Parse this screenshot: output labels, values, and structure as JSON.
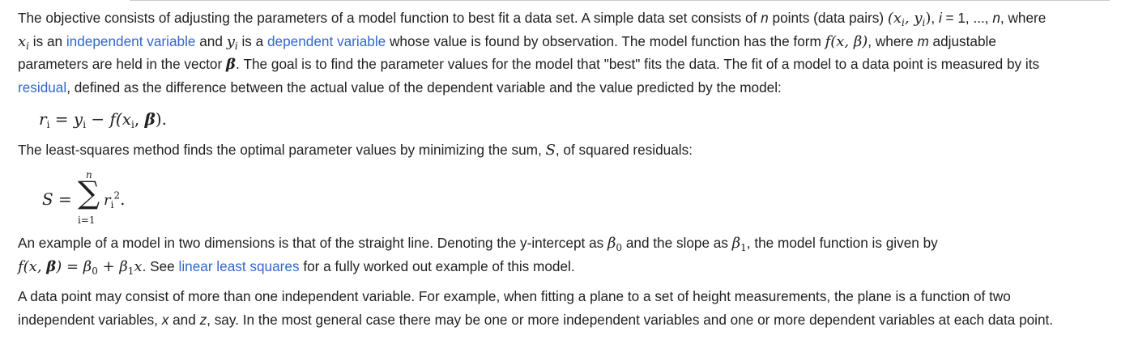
{
  "p1": {
    "l1_a": "The objective consists of adjusting the parameters of a model function to best fit a data set. A simple data set consists of ",
    "l1_n": "n",
    "l1_b": " points (data pairs) ",
    "l1_pair": "(x",
    "l1_pair_i1": "i",
    "l1_pair_mid": ", y",
    "l1_pair_i2": "i",
    "l1_pair_close": ")",
    "l1_c": ", ",
    "l1_i": "i",
    "l1_d": " = 1, ..., ",
    "l1_n2": "n",
    "l1_e": ", where",
    "l2_x": "x",
    "l2_xi": "i",
    "l2_a": " is an ",
    "l2_link1": "independent variable",
    "l2_b": " and ",
    "l2_y": "y",
    "l2_yi": "i",
    "l2_c": " is a ",
    "l2_link2": "dependent variable",
    "l2_d": " whose value is found by observation. The model function has the form ",
    "l2_f": "f(x, β)",
    "l2_e": ", where ",
    "l2_m": "m",
    "l2_g": " adjustable",
    "l3_a": "parameters are held in the vector ",
    "l3_beta": "β",
    "l3_b": ". The goal is to find the parameter values for the model that \"best\" fits the data. The fit of a model to a data point is measured by its",
    "l4_link": "residual",
    "l4_a": ", defined as the difference between the actual value of the dependent variable and the value predicted by the model:"
  },
  "eq1": {
    "r": "r",
    "r_i": "i",
    "eq": " = ",
    "y": "y",
    "y_i": "i",
    "minus": " − ",
    "f": "f(x",
    "x_i": "i",
    "comma": ", ",
    "beta": "β",
    "close": ").",
    "tail": ""
  },
  "p2": {
    "a": "The least-squares method finds the optimal parameter values by minimizing the sum, ",
    "S": "S",
    "b": ", of squared residuals:"
  },
  "eq2": {
    "lhs": "S =",
    "sigma": "∑",
    "upper": "n",
    "lower": "i=1",
    "r": "r",
    "r_i": "i",
    "sq": "2",
    "dot": "."
  },
  "p3": {
    "a": "An example of a model in two dimensions is that of the straight line. Denoting the y-intercept as ",
    "b0": "β",
    "b0_s": "0",
    "b": " and the slope as ",
    "b1": "β",
    "b1_s": "1",
    "c": ", the model function is given by",
    "f": "f(x, ",
    "f_beta": "β",
    "f_eq": ") = β",
    "f_s0": "0",
    "f_plus": " + β",
    "f_s1": "1",
    "f_x": "x",
    "f_dot": ".",
    "d": " See ",
    "link": "linear least squares",
    "e": " for a fully worked out example of this model."
  },
  "p4": {
    "a": "A data point may consist of more than one independent variable. For example, when fitting a plane to a set of height measurements, the plane is a function of two",
    "b": "independent variables, ",
    "x": "x",
    "and": " and ",
    "z": "z",
    "c": ", say. In the most general case there may be one or more independent variables and one or more dependent variables at each data point."
  }
}
